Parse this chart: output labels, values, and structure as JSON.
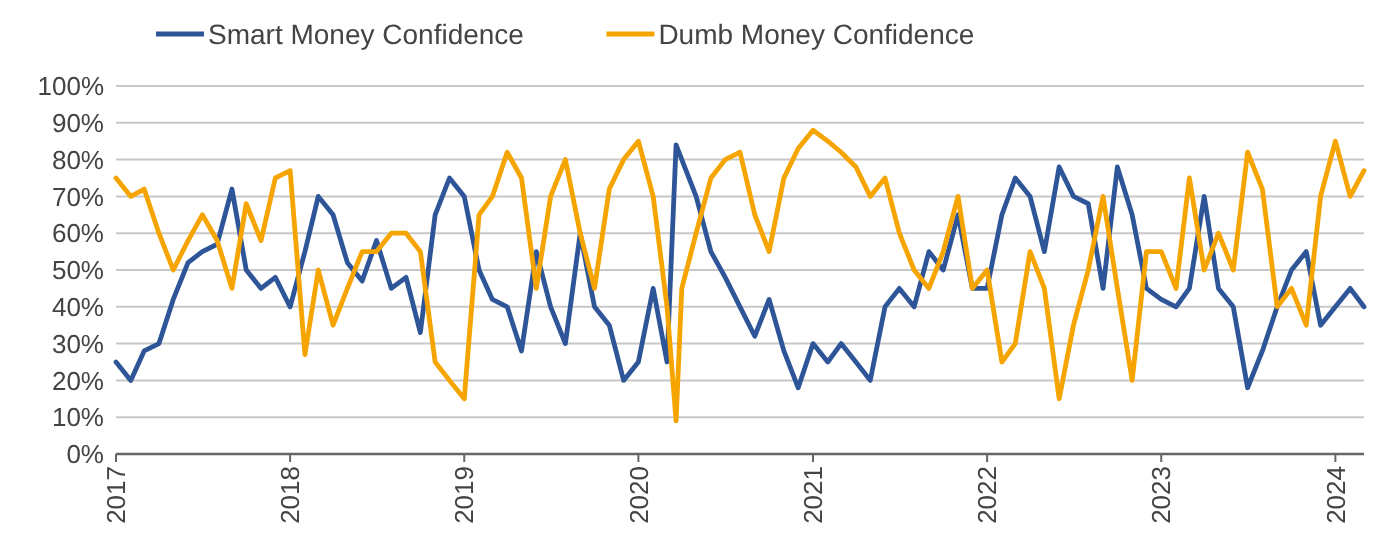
{
  "chart_data": {
    "type": "line",
    "legend": "top left",
    "grid": "y",
    "line_style": "solid",
    "marker": "none",
    "x": [
      "2017-01",
      "2017-02",
      "2017-03",
      "2017-04",
      "2017-05",
      "2017-06",
      "2017-07",
      "2017-08",
      "2017-09",
      "2017-10",
      "2017-11",
      "2017-12",
      "2018-01",
      "2018-02",
      "2018-03",
      "2018-04",
      "2018-05",
      "2018-06",
      "2018-07",
      "2018-08",
      "2018-09",
      "2018-10",
      "2018-11",
      "2018-12",
      "2019-01",
      "2019-02",
      "2019-03",
      "2019-04",
      "2019-05",
      "2019-06",
      "2019-07",
      "2019-08",
      "2019-09",
      "2019-10",
      "2019-11",
      "2019-12",
      "2020-01",
      "2020-02",
      "2020-03",
      "2020-03-20",
      "2020-04",
      "2020-05",
      "2020-06",
      "2020-07",
      "2020-08",
      "2020-09",
      "2020-10",
      "2020-11",
      "2020-12",
      "2021-01",
      "2021-02",
      "2021-03",
      "2021-04",
      "2021-05",
      "2021-06",
      "2021-07",
      "2021-08",
      "2021-09",
      "2021-10",
      "2021-11",
      "2021-12",
      "2022-01",
      "2022-02",
      "2022-03",
      "2022-04",
      "2022-05",
      "2022-06",
      "2022-07",
      "2022-08",
      "2022-09",
      "2022-10",
      "2022-11",
      "2022-12",
      "2023-01",
      "2023-02",
      "2023-03",
      "2023-04",
      "2023-05",
      "2023-06",
      "2023-07",
      "2023-08",
      "2023-09",
      "2023-10",
      "2023-11",
      "2023-12",
      "2024-01",
      "2024-02",
      "2024-03"
    ],
    "xlim": [
      "2017-01-01",
      "2024-03-01"
    ],
    "xticks": [
      {
        "value": "2017-01-01",
        "label": "2017"
      },
      {
        "value": "2018-01-01",
        "label": "2018"
      },
      {
        "value": "2019-01-01",
        "label": "2019"
      },
      {
        "value": "2020-01-01",
        "label": "2020"
      },
      {
        "value": "2021-01-01",
        "label": "2021"
      },
      {
        "value": "2022-01-01",
        "label": "2022"
      },
      {
        "value": "2023-01-01",
        "label": "2023"
      },
      {
        "value": "2024-01-01",
        "label": "2024"
      }
    ],
    "ylim": [
      0,
      100
    ],
    "yticks": [
      {
        "value": 0,
        "label": "0%"
      },
      {
        "value": 10,
        "label": "10%"
      },
      {
        "value": 20,
        "label": "20%"
      },
      {
        "value": 30,
        "label": "30%"
      },
      {
        "value": 40,
        "label": "40%"
      },
      {
        "value": 50,
        "label": "50%"
      },
      {
        "value": 60,
        "label": "60%"
      },
      {
        "value": 70,
        "label": "70%"
      },
      {
        "value": 80,
        "label": "80%"
      },
      {
        "value": 90,
        "label": "90%"
      },
      {
        "value": 100,
        "label": "100%"
      }
    ],
    "series": [
      {
        "name": "Smart Money Confidence",
        "color": "#2e5597",
        "values": [
          25,
          20,
          28,
          30,
          42,
          52,
          55,
          57,
          72,
          50,
          45,
          48,
          40,
          55,
          70,
          65,
          52,
          47,
          58,
          45,
          48,
          33,
          65,
          75,
          70,
          50,
          42,
          40,
          28,
          55,
          40,
          30,
          60,
          40,
          35,
          20,
          25,
          45,
          25,
          84,
          80,
          70,
          55,
          48,
          40,
          32,
          42,
          28,
          18,
          30,
          25,
          30,
          25,
          20,
          40,
          45,
          40,
          55,
          50,
          65,
          45,
          45,
          65,
          75,
          70,
          55,
          78,
          70,
          68,
          45,
          78,
          65,
          45,
          42,
          40,
          45,
          70,
          45,
          40,
          18,
          28,
          40,
          50,
          55,
          35,
          40,
          45,
          40
        ]
      },
      {
        "name": "Dumb Money Confidence",
        "color": "#f5a400",
        "values": [
          75,
          70,
          72,
          60,
          50,
          58,
          65,
          58,
          45,
          68,
          58,
          75,
          77,
          27,
          50,
          35,
          45,
          55,
          55,
          60,
          60,
          55,
          25,
          20,
          15,
          65,
          70,
          82,
          75,
          45,
          70,
          80,
          60,
          45,
          72,
          80,
          85,
          70,
          40,
          9,
          45,
          60,
          75,
          80,
          82,
          65,
          55,
          75,
          83,
          88,
          85,
          82,
          78,
          70,
          75,
          60,
          50,
          45,
          55,
          70,
          45,
          50,
          25,
          30,
          55,
          45,
          15,
          35,
          50,
          70,
          45,
          20,
          55,
          55,
          45,
          75,
          50,
          60,
          50,
          82,
          72,
          40,
          45,
          35,
          70,
          85,
          70,
          77
        ]
      }
    ]
  }
}
